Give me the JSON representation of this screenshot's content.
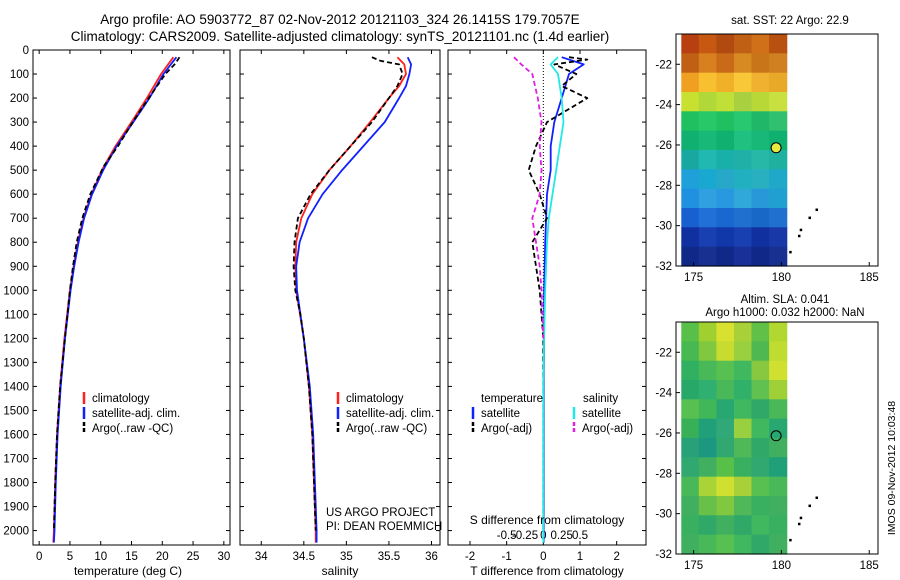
{
  "header": {
    "title_line1": "Argo profile: AO 5903772_87 02-Nov-2012 20121103_324 26.1415S 179.7057E",
    "title_line2": "Climatology: CARS2009. Satellite-adjusted climatology: synTS_20121101.nc (1.4d earlier)"
  },
  "depth_ticks": [
    0,
    100,
    200,
    300,
    400,
    500,
    600,
    700,
    800,
    900,
    1000,
    1100,
    1200,
    1300,
    1400,
    1500,
    1600,
    1700,
    1800,
    1900,
    2000
  ],
  "colors": {
    "climatology": "#ff2020",
    "satellite": "#1020ff",
    "argo": "#000000",
    "sat_salinity": "#20e8e8",
    "argo_salinity": "#e020e0"
  },
  "chart_data": [
    {
      "type": "line",
      "xlabel": "temperature (deg C)",
      "xlim": [
        -1,
        31
      ],
      "xticks": [
        0,
        5,
        10,
        15,
        20,
        25,
        30
      ],
      "ylim": [
        2060,
        0
      ],
      "legend": [
        "climatology",
        "satellite-adj. clim.",
        "Argo(..raw -QC)"
      ],
      "series": [
        {
          "name": "climatology",
          "color": "#ff2020",
          "depth": [
            30,
            100,
            200,
            300,
            400,
            500,
            600,
            700,
            800,
            900,
            1000,
            1200,
            1400,
            1600,
            1800,
            2000,
            2050
          ],
          "values": [
            21.8,
            19.8,
            17.5,
            15.0,
            12.4,
            10.2,
            8.5,
            7.2,
            6.3,
            5.6,
            5.0,
            4.1,
            3.4,
            2.9,
            2.6,
            2.4,
            2.3
          ]
        },
        {
          "name": "satellite-adj. clim.",
          "color": "#1020ff",
          "depth": [
            30,
            100,
            200,
            300,
            400,
            500,
            600,
            700,
            800,
            900,
            1000,
            1200,
            1400,
            1600,
            1800,
            2000,
            2050
          ],
          "values": [
            22.3,
            20.2,
            17.9,
            15.3,
            12.6,
            10.4,
            8.6,
            7.3,
            6.4,
            5.7,
            5.1,
            4.2,
            3.5,
            3.0,
            2.7,
            2.5,
            2.4
          ]
        },
        {
          "name": "Argo(..raw -QC)",
          "color": "#000000",
          "depth": [
            30,
            60,
            100,
            200,
            300,
            400,
            480,
            500,
            600,
            700,
            800,
            900,
            1000,
            1100,
            1200,
            1400,
            1600,
            1800,
            2000
          ],
          "values": [
            22.8,
            22.0,
            20.5,
            17.8,
            15.2,
            12.8,
            10.6,
            10.2,
            8.3,
            7.0,
            6.1,
            5.5,
            5.0,
            4.6,
            4.2,
            3.4,
            2.9,
            2.6,
            2.4
          ]
        }
      ]
    },
    {
      "type": "line",
      "xlabel": "salinity",
      "xlim": [
        33.75,
        36.1
      ],
      "xticks": [
        34,
        34.5,
        35,
        35.5,
        36
      ],
      "ylim": [
        2060,
        0
      ],
      "legend": [
        "climatology",
        "satellite-adj. clim.",
        "Argo(..raw -QC)"
      ],
      "annotations": [
        "US ARGO PROJECT",
        "PI: DEAN ROEMMICH"
      ],
      "series": [
        {
          "name": "climatology",
          "color": "#ff2020",
          "depth": [
            30,
            60,
            100,
            150,
            200,
            300,
            400,
            500,
            600,
            700,
            800,
            900,
            1000,
            1200,
            1400,
            1600,
            1800,
            2000,
            2050
          ],
          "values": [
            35.6,
            35.68,
            35.7,
            35.62,
            35.5,
            35.28,
            35.05,
            34.8,
            34.6,
            34.47,
            34.41,
            34.4,
            34.41,
            34.5,
            34.56,
            34.6,
            34.62,
            34.64,
            34.64
          ]
        },
        {
          "name": "satellite-adj. clim.",
          "color": "#1020ff",
          "depth": [
            30,
            60,
            100,
            150,
            200,
            300,
            400,
            500,
            600,
            700,
            800,
            900,
            1000,
            1200,
            1400,
            1600,
            1800,
            2000,
            2050
          ],
          "values": [
            35.72,
            35.76,
            35.74,
            35.7,
            35.62,
            35.45,
            35.2,
            34.95,
            34.72,
            34.55,
            34.45,
            34.41,
            34.42,
            34.5,
            34.57,
            34.61,
            34.63,
            34.65,
            34.65
          ]
        },
        {
          "name": "Argo(..raw -QC)",
          "color": "#000000",
          "depth": [
            30,
            45,
            60,
            100,
            150,
            200,
            300,
            400,
            500,
            600,
            700,
            800,
            900,
            1000,
            1100,
            1200,
            1400,
            1600,
            1800,
            2000
          ],
          "values": [
            35.3,
            35.4,
            35.62,
            35.66,
            35.6,
            35.5,
            35.3,
            35.05,
            34.8,
            34.58,
            34.43,
            34.39,
            34.38,
            34.4,
            34.46,
            34.5,
            34.56,
            34.6,
            34.62,
            34.64
          ]
        }
      ]
    },
    {
      "type": "line",
      "xlabel": "T difference from climatology",
      "xlabel_top": "S difference from climatology",
      "xlim": [
        -2.6,
        2.8
      ],
      "xticks": [
        -2,
        -1,
        0,
        1,
        2
      ],
      "xticks_top": [
        -0.5,
        -0.25,
        0,
        0.25,
        0.5
      ],
      "ylim": [
        2060,
        0
      ],
      "legend_titles": [
        "temperature",
        "salinity"
      ],
      "legend": [
        "satellite",
        "Argo(-adj)",
        "satellite",
        "Argo(-adj)"
      ],
      "series": [
        {
          "name": "satellite",
          "color": "#1020ff",
          "depth": [
            30,
            60,
            100,
            200,
            300,
            400,
            500,
            600,
            800,
            1000,
            1200,
            1400,
            1600,
            1800,
            2000,
            2050
          ],
          "values": [
            0.5,
            1.1,
            0.7,
            0.5,
            0.3,
            0.2,
            0.2,
            0.1,
            0.05,
            0.02,
            0.02,
            0.01,
            0.01,
            0.01,
            0.01,
            0.01
          ]
        },
        {
          "name": "Argo(-adj)",
          "color": "#000000",
          "depth": [
            30,
            40,
            60,
            100,
            150,
            200,
            300,
            400,
            500,
            600,
            700,
            800,
            900,
            1000,
            1200,
            1400,
            1600,
            1800,
            2000
          ],
          "values": [
            0.7,
            1.2,
            0.3,
            0.9,
            0.5,
            1.2,
            0.1,
            -0.2,
            -0.4,
            -0.1,
            0.1,
            -0.3,
            -0.2,
            -0.1,
            0.0,
            0.0,
            0.0,
            0.0,
            0.0
          ]
        },
        {
          "name": "satellite",
          "color": "#20e8e8",
          "depth": [
            30,
            60,
            100,
            200,
            300,
            400,
            500,
            600,
            700,
            800,
            1000,
            1200,
            1400,
            1600,
            1800,
            2000,
            2050
          ],
          "values": [
            0.4,
            0.2,
            0.4,
            0.5,
            0.55,
            0.45,
            0.35,
            0.25,
            0.15,
            0.1,
            0.05,
            0.02,
            0.0,
            0.0,
            0.0,
            0.0,
            0.0
          ]
        },
        {
          "name": "Argo(-adj)",
          "color": "#e020e0",
          "depth": [
            30,
            60,
            100,
            200,
            300,
            400,
            500,
            600,
            700,
            800,
            900,
            1000,
            1200
          ],
          "values": [
            -0.8,
            -0.6,
            -0.3,
            -0.15,
            -0.05,
            -0.1,
            -0.05,
            -0.1,
            -0.3,
            -0.2,
            -0.1,
            -0.05,
            0.0
          ]
        }
      ]
    },
    {
      "type": "heatmap",
      "title": "sat. SST: 22 Argo: 22.9",
      "xlim": [
        174,
        185.5
      ],
      "ylim": [
        -32,
        -20.5
      ],
      "xticks": [
        175,
        180,
        185
      ],
      "yticks": [
        -22,
        -24,
        -26,
        -28,
        -30,
        -32
      ],
      "field_extent": {
        "lon": [
          174.3,
          180.3
        ],
        "lat": [
          -32,
          -20.5
        ]
      },
      "field_rows": [
        [
          "#b84010",
          "#c65812",
          "#b04a10",
          "#c06014",
          "#d07018",
          "#b85010"
        ],
        [
          "#c06014",
          "#d88020",
          "#c86a18",
          "#d88a22",
          "#c87418",
          "#d08020"
        ],
        [
          "#f0a020",
          "#f8c030",
          "#f0b028",
          "#f8c838",
          "#f0b030",
          "#e8a828"
        ],
        [
          "#c8e030",
          "#b0d838",
          "#c0e038",
          "#a8d040",
          "#b8d838",
          "#c8e040"
        ],
        [
          "#20c060",
          "#28c868",
          "#20c060",
          "#28c870",
          "#20b868",
          "#30c070"
        ],
        [
          "#10b070",
          "#18b878",
          "#10b070",
          "#20c080",
          "#18b878",
          "#10b070"
        ],
        [
          "#18a8a0",
          "#20b8b0",
          "#18b0a8",
          "#20b0a8",
          "#28b8a8",
          "#20b0a0"
        ],
        [
          "#20a0d8",
          "#18a8d0",
          "#28a8c8",
          "#20b0c0",
          "#28b0c0",
          "#20a8c8"
        ],
        [
          "#2090e0",
          "#30a0e0",
          "#2898e0",
          "#30a8d8",
          "#2898d8",
          "#20a0d0"
        ],
        [
          "#1860d0",
          "#2070d8",
          "#1868d0",
          "#2070d0",
          "#1868c8",
          "#2070d0"
        ],
        [
          "#1030a0",
          "#1840b0",
          "#1038a8",
          "#1840b0",
          "#1030a0",
          "#1838a8"
        ],
        [
          "#102888",
          "#183090",
          "#102888",
          "#183098",
          "#102888",
          "#183090"
        ]
      ],
      "argo_marker": {
        "lon": 179.7,
        "lat": -26.14,
        "fill": "#e8e840"
      },
      "track_points": [
        [
          182.0,
          -29.2
        ],
        [
          181.6,
          -29.6
        ],
        [
          181.1,
          -30.2
        ],
        [
          181.0,
          -30.5
        ],
        [
          180.5,
          -31.3
        ]
      ]
    },
    {
      "type": "heatmap",
      "title": "Altim. SLA: 0.041",
      "subtitle": "Argo h1000: 0.032 h2000: NaN",
      "xlim": [
        174,
        185.5
      ],
      "ylim": [
        -32,
        -20.5
      ],
      "xticks": [
        175,
        180,
        185
      ],
      "yticks": [
        -22,
        -24,
        -26,
        -28,
        -30,
        -32
      ],
      "field_extent": {
        "lon": [
          174.3,
          180.3
        ],
        "lat": [
          -32,
          -20.5
        ]
      },
      "field_rows": [
        [
          "#58c048",
          "#a0d030",
          "#d8e030",
          "#a8d038",
          "#60c048",
          "#b0d830"
        ],
        [
          "#48b850",
          "#80c840",
          "#c8dc30",
          "#98d040",
          "#50b850",
          "#c0dc30"
        ],
        [
          "#30b060",
          "#48b858",
          "#58c050",
          "#40b860",
          "#88c840",
          "#d0e030"
        ],
        [
          "#28a868",
          "#30b070",
          "#48b858",
          "#30b068",
          "#60c050",
          "#a0d038"
        ],
        [
          "#58c050",
          "#40b858",
          "#28a870",
          "#40b860",
          "#30a868",
          "#48b858"
        ],
        [
          "#38b058",
          "#20a078",
          "#30a878",
          "#98d040",
          "#40b860",
          "#28a870"
        ],
        [
          "#28a078",
          "#1c9880",
          "#30a870",
          "#50b858",
          "#30a868",
          "#40b060"
        ],
        [
          "#30a870",
          "#40b060",
          "#58c048",
          "#38b060",
          "#30a870",
          "#20a078"
        ],
        [
          "#48b858",
          "#a8d438",
          "#d0e030",
          "#a8d038",
          "#58c050",
          "#48b858"
        ],
        [
          "#40b060",
          "#68c048",
          "#80c840",
          "#50b858",
          "#38b060",
          "#40b060"
        ],
        [
          "#38b060",
          "#30a868",
          "#40b060",
          "#30a868",
          "#40b860",
          "#38b060"
        ],
        [
          "#40b060",
          "#48b858",
          "#58c050",
          "#40b860",
          "#30a868",
          "#40b060"
        ]
      ],
      "argo_marker": {
        "lon": 179.7,
        "lat": -26.14,
        "fill": "none"
      },
      "track_points": [
        [
          182.0,
          -29.2
        ],
        [
          181.6,
          -29.6
        ],
        [
          181.1,
          -30.2
        ],
        [
          181.0,
          -30.5
        ],
        [
          180.5,
          -31.3
        ]
      ]
    }
  ],
  "footer": {
    "stamp": "IMOS 09-Nov-2012 10:03:48"
  }
}
